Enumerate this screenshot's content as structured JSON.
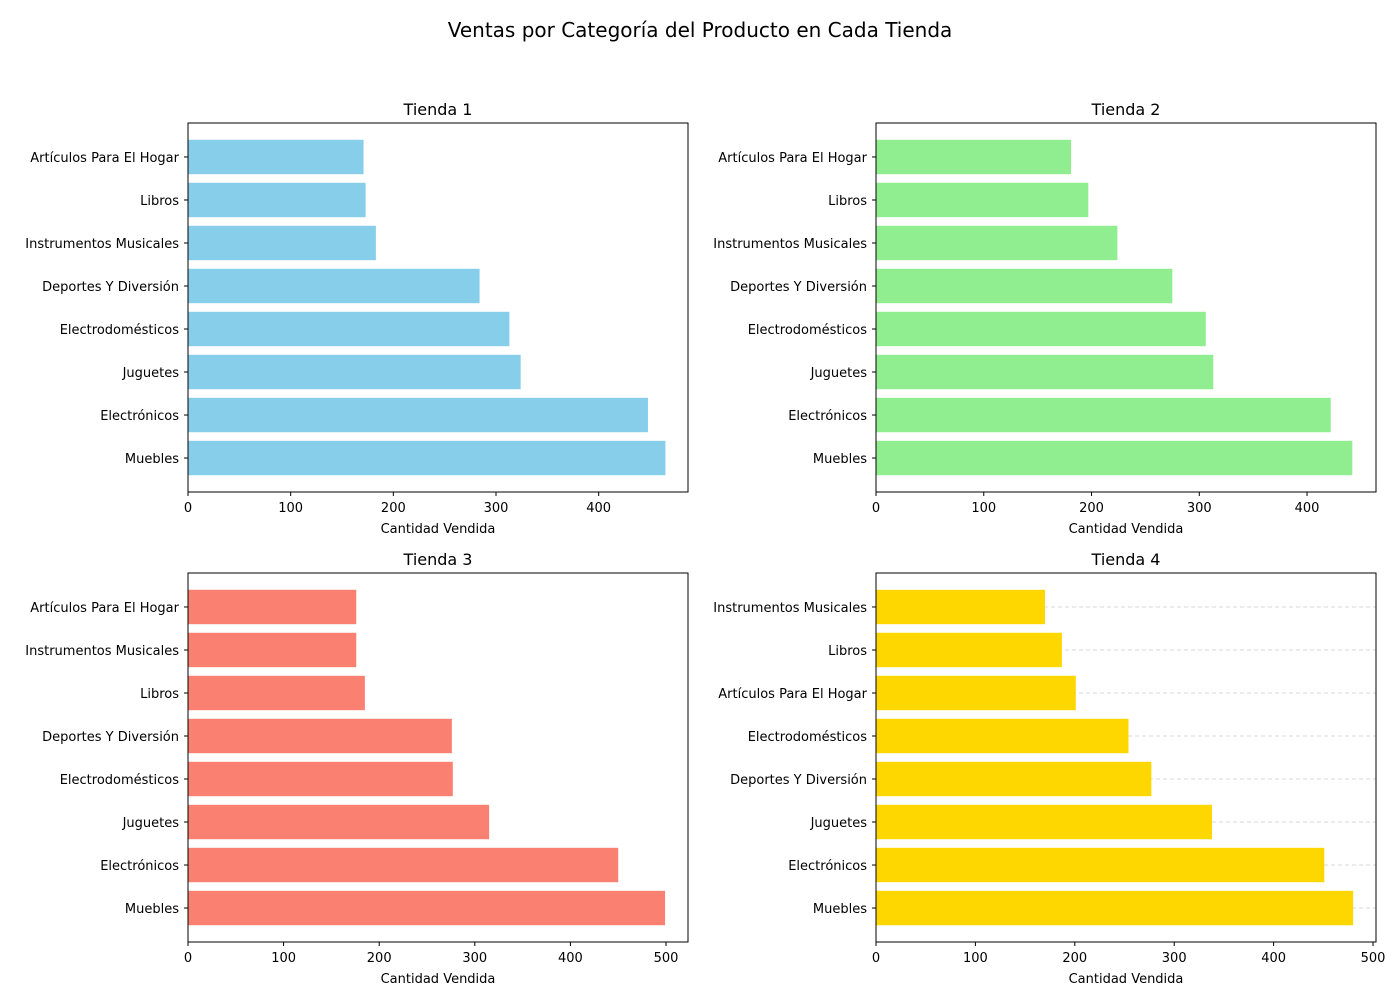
{
  "figure": {
    "title": "Ventas por Categoría del Producto en Cada Tienda"
  },
  "chart_data": [
    {
      "type": "bar",
      "orientation": "horizontal",
      "title": "Tienda 1",
      "xlabel": "Cantidad Vendida",
      "ylabel": "",
      "color": "#87ceeb",
      "grid": false,
      "xlim": [
        0,
        487
      ],
      "xticks": [
        0,
        100,
        200,
        300,
        400
      ],
      "categories": [
        "Muebles",
        "Electrónicos",
        "Juguetes",
        "Electrodomésticos",
        "Deportes Y Diversión",
        "Instrumentos Musicales",
        "Libros",
        "Artículos Para El Hogar"
      ],
      "values": [
        465,
        448,
        324,
        313,
        284,
        183,
        173,
        171
      ]
    },
    {
      "type": "bar",
      "orientation": "horizontal",
      "title": "Tienda 2",
      "xlabel": "Cantidad Vendida",
      "ylabel": "",
      "color": "#90ee90",
      "grid": false,
      "xlim": [
        0,
        464
      ],
      "xticks": [
        0,
        100,
        200,
        300,
        400
      ],
      "categories": [
        "Muebles",
        "Electrónicos",
        "Juguetes",
        "Electrodomésticos",
        "Deportes Y Diversión",
        "Instrumentos Musicales",
        "Libros",
        "Artículos Para El Hogar"
      ],
      "values": [
        442,
        422,
        313,
        306,
        275,
        224,
        197,
        181
      ]
    },
    {
      "type": "bar",
      "orientation": "horizontal",
      "title": "Tienda 3",
      "xlabel": "Cantidad Vendida",
      "ylabel": "",
      "color": "#fa8072",
      "grid": false,
      "xlim": [
        0,
        523
      ],
      "xticks": [
        0,
        100,
        200,
        300,
        400,
        500
      ],
      "categories": [
        "Muebles",
        "Electrónicos",
        "Juguetes",
        "Electrodomésticos",
        "Deportes Y Diversión",
        "Libros",
        "Instrumentos Musicales",
        "Artículos Para El Hogar"
      ],
      "values": [
        499,
        450,
        315,
        277,
        276,
        185,
        176,
        176
      ]
    },
    {
      "type": "bar",
      "orientation": "horizontal",
      "title": "Tienda 4",
      "xlabel": "Cantidad Vendida",
      "ylabel": "",
      "color": "#ffd700",
      "grid": true,
      "xlim": [
        0,
        503
      ],
      "xticks": [
        0,
        100,
        200,
        300,
        400,
        500
      ],
      "categories": [
        "Muebles",
        "Electrónicos",
        "Juguetes",
        "Deportes Y Diversión",
        "Electrodomésticos",
        "Artículos Para El Hogar",
        "Libros",
        "Instrumentos Musicales"
      ],
      "values": [
        480,
        451,
        338,
        277,
        254,
        201,
        187,
        170
      ]
    }
  ]
}
